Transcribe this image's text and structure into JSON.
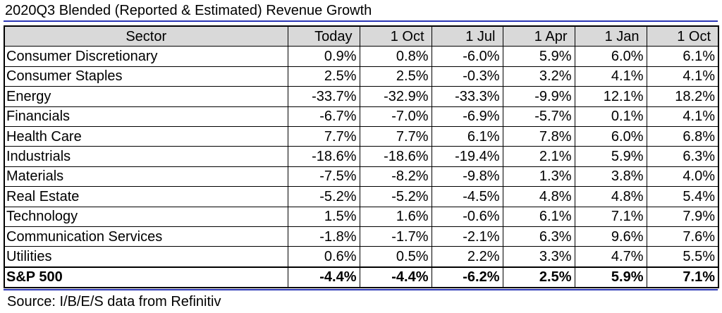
{
  "title": "2020Q3 Blended (Reported & Estimated) Revenue Growth",
  "footer": "Source: I/B/E/S data from Refinitiv",
  "chart_data": {
    "type": "table",
    "title": "2020Q3 Blended (Reported & Estimated) Revenue Growth",
    "columns": [
      "Sector",
      "Today",
      "1 Oct",
      "1 Jul",
      "1 Apr",
      "1 Jan",
      "1 Oct"
    ],
    "rows": [
      {
        "sector": "Consumer Discretionary",
        "values": [
          "0.9%",
          "0.8%",
          "-6.0%",
          "5.9%",
          "6.0%",
          "6.1%"
        ]
      },
      {
        "sector": "Consumer Staples",
        "values": [
          "2.5%",
          "2.5%",
          "-0.3%",
          "3.2%",
          "4.1%",
          "4.1%"
        ]
      },
      {
        "sector": "Energy",
        "values": [
          "-33.7%",
          "-32.9%",
          "-33.3%",
          "-9.9%",
          "12.1%",
          "18.2%"
        ]
      },
      {
        "sector": "Financials",
        "values": [
          "-6.7%",
          "-7.0%",
          "-6.9%",
          "-5.7%",
          "0.1%",
          "4.1%"
        ]
      },
      {
        "sector": "Health Care",
        "values": [
          "7.7%",
          "7.7%",
          "6.1%",
          "7.8%",
          "6.0%",
          "6.8%"
        ]
      },
      {
        "sector": "Industrials",
        "values": [
          "-18.6%",
          "-18.6%",
          "-19.4%",
          "2.1%",
          "5.9%",
          "6.3%"
        ]
      },
      {
        "sector": "Materials",
        "values": [
          "-7.5%",
          "-8.2%",
          "-9.8%",
          "1.3%",
          "3.8%",
          "4.0%"
        ]
      },
      {
        "sector": "Real Estate",
        "values": [
          "-5.2%",
          "-5.2%",
          "-4.5%",
          "4.8%",
          "4.8%",
          "5.4%"
        ]
      },
      {
        "sector": "Technology",
        "values": [
          "1.5%",
          "1.6%",
          "-0.6%",
          "6.1%",
          "7.1%",
          "7.9%"
        ]
      },
      {
        "sector": "Communication Services",
        "values": [
          "-1.8%",
          "-1.7%",
          "-2.1%",
          "6.3%",
          "9.6%",
          "7.6%"
        ]
      },
      {
        "sector": "Utilities",
        "values": [
          "0.6%",
          "0.5%",
          "2.2%",
          "3.3%",
          "4.7%",
          "5.5%"
        ]
      }
    ],
    "total": {
      "sector": "S&P 500",
      "values": [
        "-4.4%",
        "-4.4%",
        "-6.2%",
        "2.5%",
        "5.9%",
        "7.1%"
      ]
    }
  },
  "colors": {
    "rule": "#2a35b5",
    "header_bg": "#d9d9d9"
  }
}
